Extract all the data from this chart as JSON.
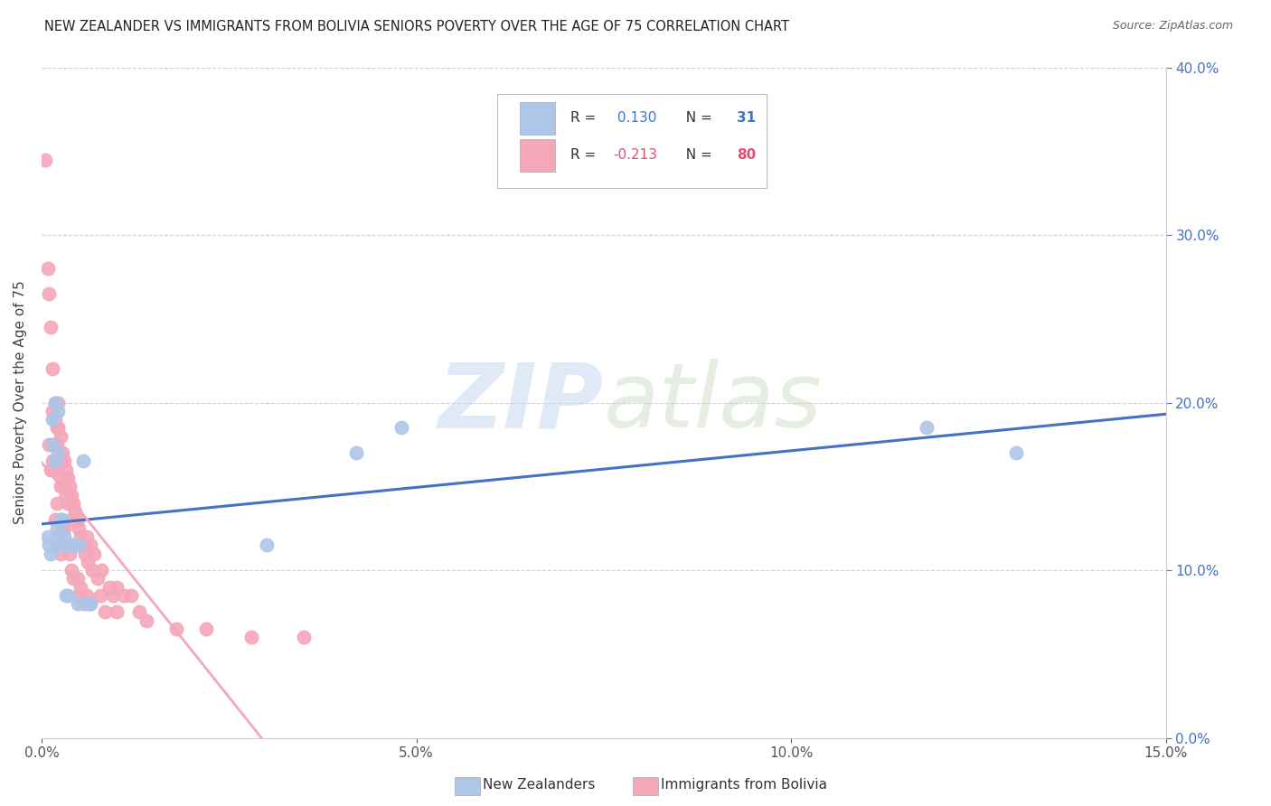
{
  "title": "NEW ZEALANDER VS IMMIGRANTS FROM BOLIVIA SENIORS POVERTY OVER THE AGE OF 75 CORRELATION CHART",
  "source": "Source: ZipAtlas.com",
  "ylabel": "Seniors Poverty Over the Age of 75",
  "xmin": 0.0,
  "xmax": 0.15,
  "ymin": 0.0,
  "ymax": 0.4,
  "nz_R": 0.13,
  "nz_N": 31,
  "bolivia_R": -0.213,
  "bolivia_N": 80,
  "nz_color": "#aec6e8",
  "bolivia_color": "#f4a7b9",
  "nz_line_color": "#4472c4",
  "bolivia_line_color": "#f4a7b9",
  "background_color": "#ffffff",
  "grid_color": "#cccccc",
  "legend_label_nz": "New Zealanders",
  "legend_label_bolivia": "Immigrants from Bolivia",
  "nz_x": [
    0.0008,
    0.001,
    0.0012,
    0.0015,
    0.0015,
    0.0018,
    0.0018,
    0.002,
    0.002,
    0.0022,
    0.0022,
    0.0025,
    0.0025,
    0.0028,
    0.003,
    0.003,
    0.0032,
    0.0035,
    0.004,
    0.0042,
    0.0045,
    0.0048,
    0.005,
    0.0055,
    0.006,
    0.0065,
    0.03,
    0.042,
    0.048,
    0.118,
    0.13
  ],
  "nz_y": [
    0.12,
    0.115,
    0.11,
    0.19,
    0.175,
    0.2,
    0.165,
    0.115,
    0.125,
    0.195,
    0.17,
    0.13,
    0.115,
    0.13,
    0.12,
    0.115,
    0.085,
    0.085,
    0.115,
    0.115,
    0.115,
    0.08,
    0.115,
    0.165,
    0.08,
    0.08,
    0.115,
    0.17,
    0.185,
    0.185,
    0.17
  ],
  "bolivia_x": [
    0.0005,
    0.0008,
    0.001,
    0.001,
    0.0012,
    0.0012,
    0.0015,
    0.0015,
    0.0015,
    0.0018,
    0.0018,
    0.0018,
    0.0018,
    0.002,
    0.002,
    0.002,
    0.002,
    0.002,
    0.0022,
    0.0022,
    0.0022,
    0.0022,
    0.0025,
    0.0025,
    0.0025,
    0.0025,
    0.0025,
    0.0028,
    0.0028,
    0.0028,
    0.003,
    0.003,
    0.003,
    0.0032,
    0.0032,
    0.0032,
    0.0035,
    0.0035,
    0.0035,
    0.0038,
    0.0038,
    0.004,
    0.004,
    0.004,
    0.0042,
    0.0042,
    0.0045,
    0.0045,
    0.0048,
    0.0048,
    0.005,
    0.005,
    0.0052,
    0.0052,
    0.0055,
    0.0055,
    0.0058,
    0.006,
    0.006,
    0.0062,
    0.0065,
    0.0065,
    0.0068,
    0.007,
    0.0075,
    0.0078,
    0.008,
    0.0085,
    0.009,
    0.0095,
    0.01,
    0.01,
    0.011,
    0.012,
    0.013,
    0.014,
    0.018,
    0.022,
    0.028,
    0.035
  ],
  "bolivia_y": [
    0.345,
    0.28,
    0.265,
    0.175,
    0.245,
    0.16,
    0.22,
    0.195,
    0.165,
    0.2,
    0.19,
    0.175,
    0.13,
    0.185,
    0.175,
    0.16,
    0.14,
    0.115,
    0.2,
    0.185,
    0.165,
    0.12,
    0.18,
    0.165,
    0.15,
    0.13,
    0.11,
    0.17,
    0.155,
    0.125,
    0.165,
    0.15,
    0.125,
    0.16,
    0.145,
    0.115,
    0.155,
    0.14,
    0.115,
    0.15,
    0.11,
    0.145,
    0.13,
    0.1,
    0.14,
    0.095,
    0.135,
    0.115,
    0.13,
    0.095,
    0.125,
    0.085,
    0.12,
    0.09,
    0.115,
    0.08,
    0.11,
    0.12,
    0.085,
    0.105,
    0.115,
    0.08,
    0.1,
    0.11,
    0.095,
    0.085,
    0.1,
    0.075,
    0.09,
    0.085,
    0.09,
    0.075,
    0.085,
    0.085,
    0.075,
    0.07,
    0.065,
    0.065,
    0.06,
    0.06
  ]
}
